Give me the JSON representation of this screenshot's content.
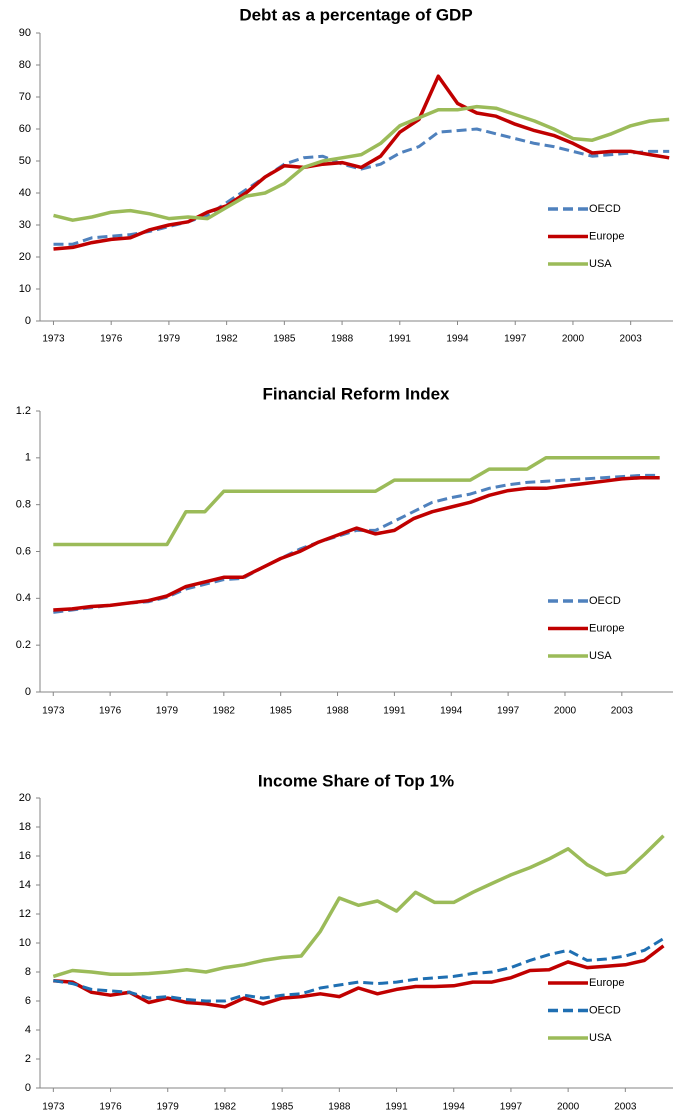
{
  "chart_data": [
    {
      "type": "line",
      "title": "Debt as a percentage of GDP",
      "x": [
        1973,
        1974,
        1975,
        1976,
        1977,
        1978,
        1979,
        1980,
        1981,
        1982,
        1983,
        1984,
        1985,
        1986,
        1987,
        1988,
        1989,
        1990,
        1991,
        1992,
        1993,
        1994,
        1995,
        1996,
        1997,
        1998,
        1999,
        2000,
        2001,
        2002,
        2003,
        2004,
        2005
      ],
      "xlim": [
        1972.3,
        2005.2
      ],
      "xticks": [
        1973,
        1976,
        1979,
        1982,
        1985,
        1988,
        1991,
        1994,
        1997,
        2000,
        2003
      ],
      "ylim": [
        0,
        90
      ],
      "yticks": [
        0,
        10,
        20,
        30,
        40,
        50,
        60,
        70,
        80,
        90
      ],
      "legend": "right",
      "series": [
        {
          "name": "OECD",
          "color": "#4f81bd",
          "dashed": true,
          "values": [
            24,
            24,
            26,
            26.5,
            27,
            28,
            29.5,
            31,
            33,
            37,
            41,
            45,
            49,
            51,
            51.5,
            49,
            47.5,
            49,
            52.5,
            54.5,
            59,
            59.5,
            60,
            58.5,
            57,
            55.5,
            54.5,
            53,
            51.5,
            52,
            52.5,
            53,
            53
          ]
        },
        {
          "name": "Europe",
          "color": "#c00000",
          "dashed": false,
          "values": [
            22.5,
            23,
            24.5,
            25.5,
            26,
            28.5,
            30,
            31,
            34,
            36,
            40,
            45,
            48.5,
            48,
            49,
            49.5,
            48,
            51.5,
            59,
            63,
            76.5,
            68,
            65,
            64,
            61.5,
            59.5,
            58,
            55.5,
            52.5,
            53,
            53,
            52,
            51
          ]
        },
        {
          "name": "USA",
          "color": "#9bbb59",
          "dashed": false,
          "values": [
            33,
            31.5,
            32.5,
            34,
            34.5,
            33.5,
            32,
            32.5,
            32,
            35.5,
            39,
            40,
            43,
            48,
            50,
            51,
            52,
            55.5,
            61,
            63.5,
            66,
            66,
            67,
            66.5,
            64.5,
            62.5,
            60,
            57,
            56.5,
            58.5,
            61,
            62.5,
            63
          ]
        }
      ]
    },
    {
      "type": "line",
      "title": "Financial Reform Index",
      "x": [
        1973,
        1974,
        1975,
        1976,
        1977,
        1978,
        1979,
        1980,
        1981,
        1982,
        1983,
        1984,
        1985,
        1986,
        1987,
        1988,
        1989,
        1990,
        1991,
        1992,
        1993,
        1994,
        1995,
        1996,
        1997,
        1998,
        1999,
        2000,
        2001,
        2002,
        2003,
        2004,
        2005
      ],
      "xlim": [
        1972.3,
        2005.7
      ],
      "xticks": [
        1973,
        1976,
        1979,
        1982,
        1985,
        1988,
        1991,
        1994,
        1997,
        2000,
        2003
      ],
      "ylim": [
        0,
        1.2
      ],
      "yticks": [
        0,
        0.2,
        0.4,
        0.6,
        0.8,
        1,
        1.2
      ],
      "legend": "right",
      "series": [
        {
          "name": "OECD",
          "color": "#4f81bd",
          "dashed": true,
          "values": [
            0.34,
            0.35,
            0.36,
            0.37,
            0.38,
            0.385,
            0.405,
            0.44,
            0.46,
            0.48,
            0.485,
            0.53,
            0.57,
            0.61,
            0.64,
            0.665,
            0.69,
            0.69,
            0.73,
            0.77,
            0.81,
            0.83,
            0.845,
            0.87,
            0.885,
            0.895,
            0.9,
            0.905,
            0.91,
            0.915,
            0.92,
            0.925,
            0.925
          ]
        },
        {
          "name": "Europe",
          "color": "#c00000",
          "dashed": false,
          "values": [
            0.35,
            0.355,
            0.365,
            0.37,
            0.38,
            0.39,
            0.41,
            0.45,
            0.47,
            0.49,
            0.49,
            0.53,
            0.57,
            0.6,
            0.64,
            0.67,
            0.7,
            0.675,
            0.69,
            0.74,
            0.77,
            0.79,
            0.81,
            0.84,
            0.86,
            0.87,
            0.87,
            0.88,
            0.89,
            0.9,
            0.91,
            0.915,
            0.915
          ]
        },
        {
          "name": "USA",
          "color": "#9bbb59",
          "dashed": false,
          "values": [
            0.63,
            0.63,
            0.63,
            0.63,
            0.63,
            0.63,
            0.63,
            0.77,
            0.77,
            0.857,
            0.857,
            0.857,
            0.857,
            0.857,
            0.857,
            0.857,
            0.857,
            0.857,
            0.905,
            0.905,
            0.905,
            0.905,
            0.905,
            0.952,
            0.952,
            0.952,
            1,
            1,
            1,
            1,
            1,
            1,
            1
          ]
        }
      ]
    },
    {
      "type": "line",
      "title": "Income Share of Top 1%",
      "x": [
        1973,
        1974,
        1975,
        1976,
        1977,
        1978,
        1979,
        1980,
        1981,
        1982,
        1983,
        1984,
        1985,
        1986,
        1987,
        1988,
        1989,
        1990,
        1991,
        1992,
        1993,
        1994,
        1995,
        1996,
        1997,
        1998,
        1999,
        2000,
        2001,
        2002,
        2003,
        2004,
        2005
      ],
      "xlim": [
        1972.3,
        2005.5
      ],
      "xticks": [
        1973,
        1976,
        1979,
        1982,
        1985,
        1988,
        1991,
        1994,
        1997,
        2000,
        2003
      ],
      "ylim": [
        0,
        20
      ],
      "yticks": [
        0,
        2,
        4,
        6,
        8,
        10,
        12,
        14,
        16,
        18,
        20
      ],
      "legend": "right",
      "series": [
        {
          "name": "Europe",
          "color": "#c00000",
          "dashed": false,
          "values": [
            7.4,
            7.3,
            6.6,
            6.4,
            6.6,
            5.9,
            6.2,
            5.9,
            5.8,
            5.6,
            6.2,
            5.8,
            6.2,
            6.3,
            6.5,
            6.3,
            6.9,
            6.5,
            6.8,
            7,
            7,
            7.05,
            7.3,
            7.3,
            7.6,
            8.1,
            8.15,
            8.7,
            8.3,
            8.4,
            8.5,
            8.8,
            9.8
          ]
        },
        {
          "name": "OECD",
          "color": "#1f6fb2",
          "dashed": true,
          "values": [
            7.4,
            7.2,
            6.8,
            6.7,
            6.6,
            6.2,
            6.3,
            6.1,
            6,
            6,
            6.4,
            6.2,
            6.4,
            6.5,
            6.9,
            7.1,
            7.3,
            7.2,
            7.3,
            7.5,
            7.6,
            7.7,
            7.9,
            8,
            8.3,
            8.8,
            9.2,
            9.5,
            8.8,
            8.9,
            9.1,
            9.5,
            10.3
          ]
        },
        {
          "name": "USA",
          "color": "#9bbb59",
          "dashed": false,
          "values": [
            7.7,
            8.1,
            8,
            7.85,
            7.85,
            7.9,
            8,
            8.15,
            8,
            8.3,
            8.5,
            8.8,
            9,
            9.1,
            10.8,
            13.1,
            12.6,
            12.9,
            12.2,
            13.5,
            12.8,
            12.8,
            13.5,
            14.1,
            14.7,
            15.2,
            15.8,
            16.5,
            15.4,
            14.7,
            14.9,
            16.1,
            17.4
          ]
        }
      ]
    }
  ]
}
